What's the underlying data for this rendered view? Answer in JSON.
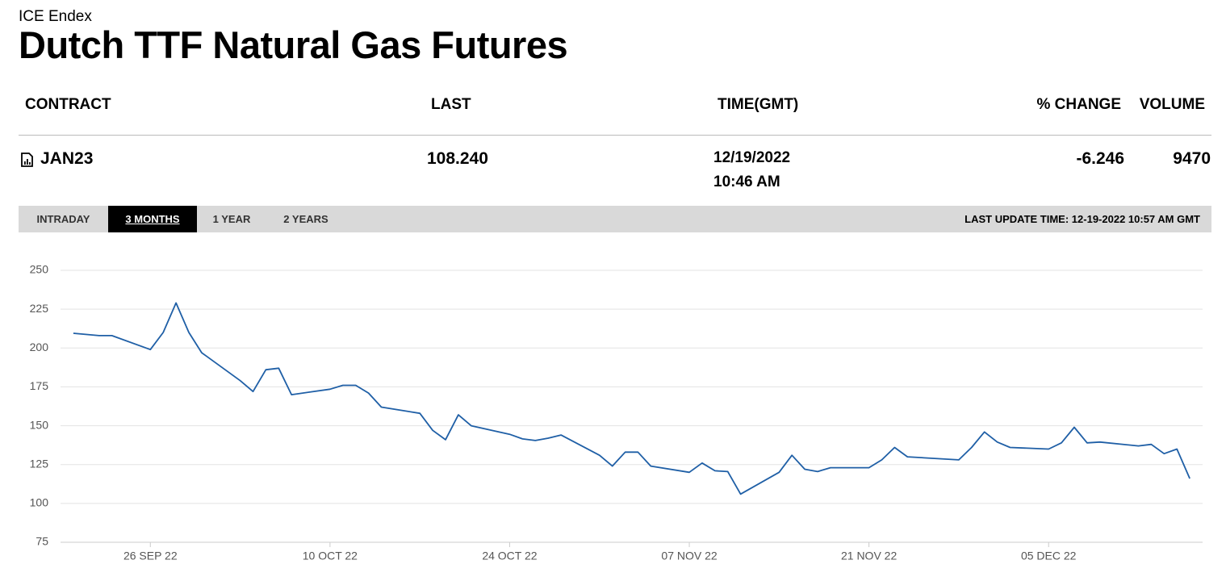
{
  "header": {
    "brand": "ICE Endex",
    "title": "Dutch TTF Natural Gas Futures"
  },
  "table": {
    "columns": [
      "CONTRACT",
      "LAST",
      "TIME(GMT)",
      "% CHANGE",
      "VOLUME"
    ],
    "row": {
      "contract": "JAN23",
      "last": "108.240",
      "date": "12/19/2022",
      "time": "10:46 AM",
      "change": "-6.246",
      "volume": "9470"
    }
  },
  "tabs": [
    "INTRADAY",
    "3 MONTHS",
    "1 YEAR",
    "2 YEARS"
  ],
  "active_tab": 1,
  "last_update": "LAST UPDATE TIME: 12-19-2022 10:57 AM GMT",
  "chart_data": {
    "type": "line",
    "color": "#1f5fa6",
    "grid": true,
    "x": [
      "2022-09-20",
      "2022-09-22",
      "2022-09-23",
      "2022-09-26",
      "2022-09-27",
      "2022-09-28",
      "2022-09-29",
      "2022-09-30",
      "2022-10-03",
      "2022-10-04",
      "2022-10-05",
      "2022-10-06",
      "2022-10-07",
      "2022-10-10",
      "2022-10-11",
      "2022-10-12",
      "2022-10-13",
      "2022-10-14",
      "2022-10-17",
      "2022-10-18",
      "2022-10-19",
      "2022-10-20",
      "2022-10-21",
      "2022-10-24",
      "2022-10-25",
      "2022-10-26",
      "2022-10-27",
      "2022-10-28",
      "2022-10-31",
      "2022-11-01",
      "2022-11-02",
      "2022-11-03",
      "2022-11-04",
      "2022-11-07",
      "2022-11-08",
      "2022-11-09",
      "2022-11-10",
      "2022-11-11",
      "2022-11-14",
      "2022-11-15",
      "2022-11-16",
      "2022-11-17",
      "2022-11-18",
      "2022-11-21",
      "2022-11-22",
      "2022-11-23",
      "2022-11-24",
      "2022-11-28",
      "2022-11-29",
      "2022-11-30",
      "2022-12-01",
      "2022-12-02",
      "2022-12-05",
      "2022-12-06",
      "2022-12-07",
      "2022-12-08",
      "2022-12-09",
      "2022-12-12",
      "2022-12-13",
      "2022-12-14",
      "2022-12-15",
      "2022-12-16"
    ],
    "values": [
      209.5,
      208,
      208,
      199,
      210,
      229,
      210,
      197,
      179,
      172,
      186,
      187,
      170,
      173.5,
      176,
      176,
      171,
      162,
      158,
      147,
      141,
      157,
      150,
      144.5,
      141.5,
      140.5,
      142,
      144,
      131,
      124,
      133,
      133,
      124,
      120,
      126,
      121,
      120.5,
      106,
      120,
      131,
      122,
      120.5,
      123,
      123,
      128,
      136,
      130,
      128,
      136,
      146,
      139.5,
      136,
      135,
      139,
      149,
      139,
      139.5,
      137,
      138,
      132,
      135,
      116
    ],
    "xlim": [
      "2022-09-19",
      "2022-12-17"
    ],
    "xticks": [
      {
        "value": "2022-09-26",
        "label": "26 SEP 22"
      },
      {
        "value": "2022-10-10",
        "label": "10 OCT 22"
      },
      {
        "value": "2022-10-24",
        "label": "24 OCT 22"
      },
      {
        "value": "2022-11-07",
        "label": "07 NOV 22"
      },
      {
        "value": "2022-11-21",
        "label": "21 NOV 22"
      },
      {
        "value": "2022-12-05",
        "label": "05 DEC 22"
      }
    ],
    "ylim": [
      75,
      250
    ],
    "yticks": [
      75,
      100,
      125,
      150,
      175,
      200,
      225,
      250
    ]
  }
}
